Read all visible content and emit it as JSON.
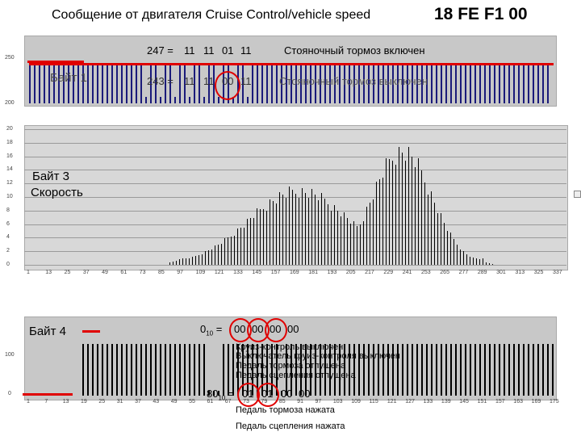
{
  "header": {
    "title": "Сообщение от двигателя Cruise Control/vehicle speed",
    "code": "18 FE F1 00"
  },
  "panel1": {
    "label": "Байт 1",
    "y_ticks": [
      "250",
      "200"
    ],
    "line1": {
      "prefix": "247 =",
      "bytes": [
        "11",
        "11",
        "01",
        "11"
      ],
      "meaning": "Стояночный тормоз включен"
    },
    "line2": {
      "prefix": "243 =",
      "bytes": [
        "11",
        "11",
        "00",
        "11"
      ],
      "meaning": "Стояночный тормоз выключен"
    }
  },
  "panel2": {
    "label_line1": "Байт 3",
    "label_line2": "Скорость",
    "y_ticks": [
      "20",
      "18",
      "16",
      "14",
      "12",
      "10",
      "8",
      "6",
      "4",
      "2",
      "0"
    ],
    "x_ticks": [
      "1",
      "13",
      "25",
      "37",
      "49",
      "61",
      "73",
      "85",
      "97",
      "109",
      "121",
      "133",
      "145",
      "157",
      "169",
      "181",
      "193",
      "205",
      "217",
      "229",
      "241",
      "253",
      "265",
      "277",
      "289",
      "301",
      "313",
      "325",
      "337"
    ]
  },
  "panel3": {
    "label": "Байт 4",
    "y_ticks": [
      "100",
      "0"
    ],
    "x_ticks": [
      "1",
      "7",
      "13",
      "19",
      "25",
      "31",
      "37",
      "43",
      "49",
      "55",
      "61",
      "67",
      "73",
      "79",
      "85",
      "91",
      "97",
      "103",
      "109",
      "115",
      "121",
      "127",
      "133",
      "139",
      "145",
      "151",
      "157",
      "163",
      "169",
      "175"
    ],
    "upper": {
      "value": "0",
      "sub": "10",
      "eq": "=",
      "bytes": [
        "00",
        "00",
        "00",
        "00"
      ],
      "notes": [
        "Круиз-контроль выключен",
        "Выключатель круиз-контроля выключен",
        "Педаль тормоза отпущена",
        "Педаль сцепления отпущена"
      ]
    },
    "lower": {
      "value": "80",
      "sub": "10",
      "eq": "=",
      "bytes": [
        "01",
        "01",
        "00",
        "00"
      ],
      "notes": [
        "Педаль тормоза нажата",
        "Педаль сцепления нажата"
      ]
    }
  },
  "colors": {
    "annotation": "#e00000",
    "plot_bg": "#c8c8c8",
    "bar": "#000000"
  }
}
